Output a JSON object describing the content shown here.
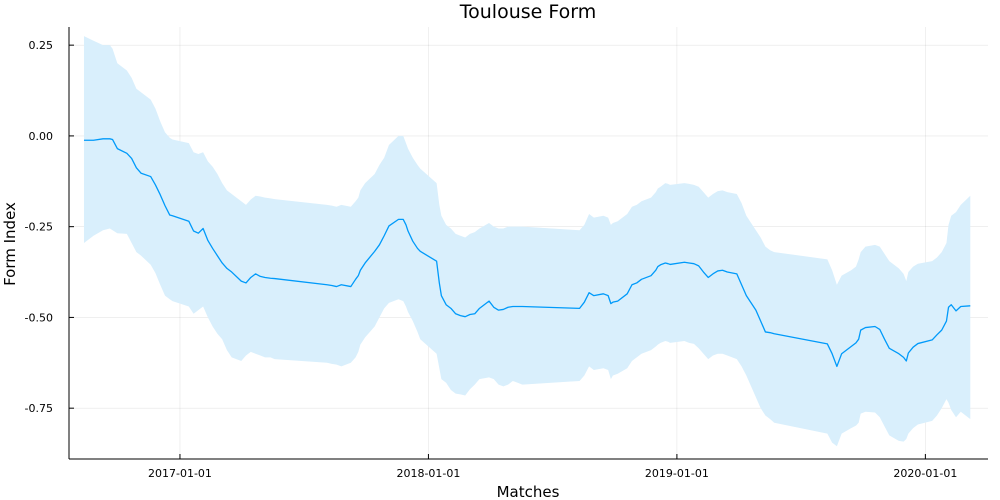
{
  "chart_data": {
    "type": "line",
    "title": "Toulouse Form",
    "xlabel": "Matches",
    "ylabel": "Form Index",
    "xlim": [
      "2016-07-22",
      "2020-04-02"
    ],
    "ylim": [
      -0.89,
      0.3
    ],
    "x_ticks": [
      "2017-01-01",
      "2018-01-01",
      "2019-01-01",
      "2020-01-01"
    ],
    "y_ticks": [
      0.25,
      0.0,
      -0.25,
      -0.5,
      -0.75
    ],
    "y_tick_labels": [
      "0.25",
      "0.00",
      "-0.25",
      "-0.50",
      "-0.75"
    ],
    "grid": true,
    "legend": "none",
    "line_color": "#009AFA",
    "band_color": "#D9EFFC",
    "series": [
      {
        "x": [
          "2016-08-13",
          "2016-08-27",
          "2016-09-10",
          "2016-09-20",
          "2016-09-24",
          "2016-10-01",
          "2016-10-15",
          "2016-10-22",
          "2016-10-29",
          "2016-11-05",
          "2016-11-19",
          "2016-11-26",
          "2016-12-03",
          "2016-12-10",
          "2016-12-17",
          "2016-12-21",
          "2017-01-14",
          "2017-01-21",
          "2017-01-28",
          "2017-02-04",
          "2017-02-11",
          "2017-02-18",
          "2017-02-25",
          "2017-03-04",
          "2017-03-11",
          "2017-03-18",
          "2017-04-01",
          "2017-04-08",
          "2017-04-15",
          "2017-04-22",
          "2017-04-29",
          "2017-05-06",
          "2017-05-14",
          "2017-05-20",
          "2017-08-05",
          "2017-08-12",
          "2017-08-19",
          "2017-08-26",
          "2017-09-09",
          "2017-09-16",
          "2017-09-20",
          "2017-09-23",
          "2017-09-30",
          "2017-10-14",
          "2017-10-21",
          "2017-10-28",
          "2017-11-04",
          "2017-11-18",
          "2017-11-25",
          "2017-11-29",
          "2017-12-02",
          "2017-12-09",
          "2017-12-16",
          "2017-12-20",
          "2018-01-13",
          "2018-01-17",
          "2018-01-20",
          "2018-01-27",
          "2018-02-03",
          "2018-02-10",
          "2018-02-17",
          "2018-02-24",
          "2018-03-03",
          "2018-03-10",
          "2018-03-17",
          "2018-03-31",
          "2018-04-07",
          "2018-04-14",
          "2018-04-21",
          "2018-04-28",
          "2018-05-05",
          "2018-05-12",
          "2018-05-19",
          "2018-08-11",
          "2018-08-18",
          "2018-08-25",
          "2018-09-01",
          "2018-09-15",
          "2018-09-22",
          "2018-09-26",
          "2018-09-29",
          "2018-10-06",
          "2018-10-20",
          "2018-10-27",
          "2018-11-03",
          "2018-11-10",
          "2018-11-24",
          "2018-12-01",
          "2018-12-04",
          "2018-12-08",
          "2018-12-15",
          "2018-12-19",
          "2018-12-22",
          "2019-01-12",
          "2019-01-19",
          "2019-01-26",
          "2019-02-02",
          "2019-02-09",
          "2019-02-16",
          "2019-02-23",
          "2019-03-02",
          "2019-03-09",
          "2019-03-16",
          "2019-03-30",
          "2019-04-06",
          "2019-04-13",
          "2019-04-20",
          "2019-04-27",
          "2019-05-04",
          "2019-05-11",
          "2019-05-18",
          "2019-05-24",
          "2019-08-10",
          "2019-08-17",
          "2019-08-24",
          "2019-08-31",
          "2019-09-14",
          "2019-09-21",
          "2019-09-25",
          "2019-09-28",
          "2019-10-05",
          "2019-10-19",
          "2019-10-26",
          "2019-11-02",
          "2019-11-09",
          "2019-11-23",
          "2019-11-30",
          "2019-12-04",
          "2019-12-07",
          "2019-12-14",
          "2019-12-21",
          "2020-01-11",
          "2020-01-18",
          "2020-01-25",
          "2020-02-01",
          "2020-02-04",
          "2020-02-08",
          "2020-02-15",
          "2020-02-22",
          "2020-03-07"
        ],
        "y": [
          -0.012,
          -0.012,
          -0.008,
          -0.008,
          -0.01,
          -0.035,
          -0.048,
          -0.062,
          -0.088,
          -0.103,
          -0.112,
          -0.135,
          -0.162,
          -0.192,
          -0.218,
          -0.22,
          -0.235,
          -0.262,
          -0.268,
          -0.255,
          -0.288,
          -0.31,
          -0.33,
          -0.35,
          -0.365,
          -0.375,
          -0.4,
          -0.405,
          -0.39,
          -0.38,
          -0.387,
          -0.39,
          -0.392,
          -0.393,
          -0.41,
          -0.412,
          -0.415,
          -0.41,
          -0.415,
          -0.395,
          -0.385,
          -0.37,
          -0.35,
          -0.318,
          -0.3,
          -0.275,
          -0.248,
          -0.23,
          -0.23,
          -0.245,
          -0.262,
          -0.29,
          -0.31,
          -0.318,
          -0.345,
          -0.405,
          -0.44,
          -0.465,
          -0.475,
          -0.49,
          -0.495,
          -0.498,
          -0.492,
          -0.49,
          -0.475,
          -0.455,
          -0.472,
          -0.48,
          -0.478,
          -0.472,
          -0.47,
          -0.47,
          -0.47,
          -0.475,
          -0.458,
          -0.432,
          -0.44,
          -0.435,
          -0.44,
          -0.462,
          -0.458,
          -0.455,
          -0.435,
          -0.41,
          -0.405,
          -0.395,
          -0.385,
          -0.37,
          -0.36,
          -0.355,
          -0.35,
          -0.352,
          -0.354,
          -0.348,
          -0.35,
          -0.352,
          -0.358,
          -0.375,
          -0.39,
          -0.38,
          -0.372,
          -0.37,
          -0.375,
          -0.38,
          -0.41,
          -0.44,
          -0.46,
          -0.48,
          -0.51,
          -0.54,
          -0.542,
          -0.545,
          -0.573,
          -0.6,
          -0.635,
          -0.6,
          -0.58,
          -0.57,
          -0.56,
          -0.535,
          -0.528,
          -0.525,
          -0.533,
          -0.56,
          -0.585,
          -0.6,
          -0.61,
          -0.62,
          -0.598,
          -0.582,
          -0.572,
          -0.562,
          -0.548,
          -0.535,
          -0.51,
          -0.472,
          -0.465,
          -0.482,
          -0.47,
          -0.468
        ],
        "lower": [
          -0.295,
          -0.275,
          -0.26,
          -0.255,
          -0.26,
          -0.268,
          -0.27,
          -0.295,
          -0.32,
          -0.33,
          -0.355,
          -0.378,
          -0.41,
          -0.44,
          -0.45,
          -0.455,
          -0.47,
          -0.49,
          -0.48,
          -0.47,
          -0.5,
          -0.525,
          -0.545,
          -0.56,
          -0.59,
          -0.61,
          -0.62,
          -0.605,
          -0.595,
          -0.6,
          -0.605,
          -0.61,
          -0.61,
          -0.615,
          -0.625,
          -0.628,
          -0.63,
          -0.635,
          -0.625,
          -0.61,
          -0.595,
          -0.575,
          -0.555,
          -0.525,
          -0.5,
          -0.475,
          -0.46,
          -0.45,
          -0.455,
          -0.47,
          -0.485,
          -0.51,
          -0.54,
          -0.56,
          -0.6,
          -0.64,
          -0.67,
          -0.68,
          -0.7,
          -0.71,
          -0.712,
          -0.715,
          -0.698,
          -0.685,
          -0.67,
          -0.665,
          -0.67,
          -0.685,
          -0.69,
          -0.685,
          -0.675,
          -0.68,
          -0.685,
          -0.675,
          -0.66,
          -0.635,
          -0.645,
          -0.64,
          -0.645,
          -0.67,
          -0.66,
          -0.655,
          -0.64,
          -0.62,
          -0.61,
          -0.6,
          -0.59,
          -0.58,
          -0.575,
          -0.57,
          -0.565,
          -0.567,
          -0.57,
          -0.565,
          -0.57,
          -0.573,
          -0.585,
          -0.6,
          -0.615,
          -0.605,
          -0.6,
          -0.6,
          -0.605,
          -0.615,
          -0.635,
          -0.66,
          -0.69,
          -0.72,
          -0.75,
          -0.77,
          -0.78,
          -0.79,
          -0.82,
          -0.845,
          -0.855,
          -0.82,
          -0.805,
          -0.798,
          -0.79,
          -0.765,
          -0.76,
          -0.762,
          -0.775,
          -0.8,
          -0.825,
          -0.84,
          -0.842,
          -0.835,
          -0.82,
          -0.805,
          -0.795,
          -0.785,
          -0.77,
          -0.75,
          -0.725,
          -0.735,
          -0.755,
          -0.775,
          -0.76,
          -0.78
        ],
        "upper": [
          0.275,
          0.262,
          0.25,
          0.25,
          0.24,
          0.2,
          0.18,
          0.16,
          0.13,
          0.12,
          0.1,
          0.075,
          0.04,
          0.01,
          -0.005,
          -0.01,
          -0.02,
          -0.045,
          -0.05,
          -0.045,
          -0.07,
          -0.085,
          -0.105,
          -0.13,
          -0.15,
          -0.16,
          -0.18,
          -0.19,
          -0.175,
          -0.165,
          -0.167,
          -0.17,
          -0.172,
          -0.174,
          -0.19,
          -0.192,
          -0.195,
          -0.19,
          -0.195,
          -0.18,
          -0.17,
          -0.15,
          -0.13,
          -0.105,
          -0.08,
          -0.06,
          -0.025,
          0.0,
          0.0,
          -0.02,
          -0.035,
          -0.06,
          -0.08,
          -0.09,
          -0.13,
          -0.19,
          -0.22,
          -0.245,
          -0.255,
          -0.27,
          -0.275,
          -0.28,
          -0.27,
          -0.265,
          -0.255,
          -0.24,
          -0.25,
          -0.255,
          -0.255,
          -0.25,
          -0.25,
          -0.25,
          -0.25,
          -0.26,
          -0.245,
          -0.215,
          -0.225,
          -0.22,
          -0.225,
          -0.245,
          -0.24,
          -0.235,
          -0.215,
          -0.195,
          -0.19,
          -0.18,
          -0.17,
          -0.155,
          -0.145,
          -0.14,
          -0.13,
          -0.132,
          -0.135,
          -0.13,
          -0.132,
          -0.135,
          -0.14,
          -0.155,
          -0.17,
          -0.16,
          -0.152,
          -0.15,
          -0.155,
          -0.16,
          -0.185,
          -0.22,
          -0.24,
          -0.26,
          -0.28,
          -0.305,
          -0.315,
          -0.32,
          -0.34,
          -0.37,
          -0.41,
          -0.385,
          -0.37,
          -0.36,
          -0.34,
          -0.32,
          -0.305,
          -0.3,
          -0.305,
          -0.325,
          -0.345,
          -0.365,
          -0.38,
          -0.4,
          -0.375,
          -0.36,
          -0.352,
          -0.345,
          -0.335,
          -0.32,
          -0.295,
          -0.245,
          -0.22,
          -0.21,
          -0.19,
          -0.165
        ]
      }
    ]
  }
}
